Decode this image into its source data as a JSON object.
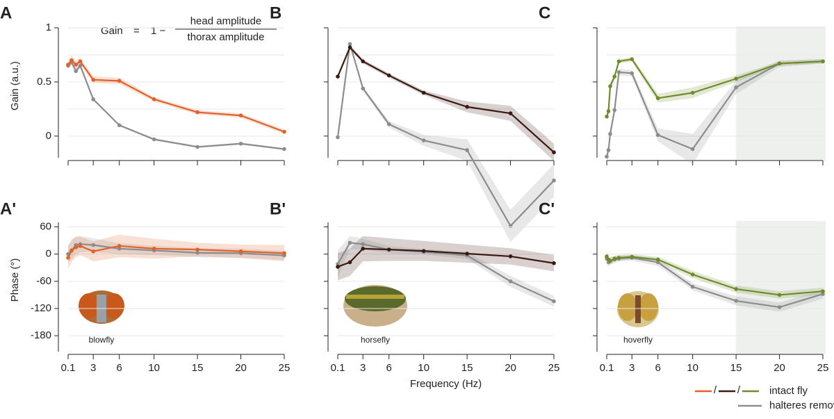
{
  "chart_data": [
    {
      "type": "line",
      "panel": "A",
      "row": 0,
      "col": 0,
      "ylabel": "Gain (a.u.)",
      "xlim": [
        0.1,
        25
      ],
      "xticks": [
        0.1,
        3,
        6,
        10,
        15,
        20,
        25
      ],
      "show_xtick_labels": false,
      "ylim": [
        -0.2,
        1
      ],
      "yticks": [
        0,
        0.5,
        1
      ],
      "show_ytick_labels": true,
      "ygrid": [
        0,
        0.25,
        0.5,
        0.75,
        1
      ],
      "series": [
        {
          "name": "intact fly",
          "color": "#e0622a",
          "x": [
            0.1,
            0.5,
            1,
            1.5,
            3,
            6,
            10,
            15,
            20,
            25
          ],
          "values": [
            0.66,
            0.7,
            0.66,
            0.69,
            0.52,
            0.51,
            0.34,
            0.22,
            0.19,
            0.04
          ],
          "errors": [
            0.04,
            0.04,
            0.04,
            0.03,
            0.03,
            0.03,
            0.02,
            0.02,
            0.02,
            0.02
          ]
        },
        {
          "name": "halteres removed",
          "color": "#8c8c8c",
          "x": [
            0.1,
            0.5,
            1,
            1.5,
            3,
            6,
            10,
            15,
            20,
            25
          ],
          "values": [
            0.65,
            0.68,
            0.6,
            0.65,
            0.34,
            0.1,
            -0.03,
            -0.1,
            -0.07,
            -0.12
          ],
          "errors": [
            0.02,
            0.02,
            0.02,
            0.02,
            0.01,
            0.01,
            0.01,
            0.01,
            0.01,
            0.01
          ]
        }
      ]
    },
    {
      "type": "line",
      "panel": "B",
      "row": 0,
      "col": 1,
      "xlim": [
        0.1,
        25
      ],
      "xticks": [
        0.1,
        3,
        6,
        10,
        15,
        20,
        25
      ],
      "show_xtick_labels": false,
      "ylim": [
        -0.2,
        1
      ],
      "yticks": [
        0,
        0.5,
        1
      ],
      "show_ytick_labels": false,
      "ygrid": [
        0,
        0.25,
        0.5,
        0.75,
        1
      ],
      "series": [
        {
          "name": "intact fly",
          "color": "#3b1a12",
          "x": [
            0.1,
            1.5,
            3,
            6,
            10,
            15,
            20,
            25
          ],
          "values": [
            0.55,
            0.82,
            0.69,
            0.56,
            0.4,
            0.27,
            0.21,
            -0.15
          ],
          "errors": [
            0.02,
            0.02,
            0.02,
            0.02,
            0.02,
            0.05,
            0.07,
            0.08
          ]
        },
        {
          "name": "halteres removed",
          "color": "#8c8c8c",
          "x": [
            0.1,
            1.5,
            3,
            6,
            10,
            15,
            20,
            25
          ],
          "values": [
            -0.01,
            0.85,
            0.44,
            0.11,
            -0.04,
            -0.13,
            -0.83,
            -0.41
          ],
          "errors": [
            0.01,
            0.01,
            0.02,
            0.03,
            0.05,
            0.1,
            0.15,
            0.15
          ]
        }
      ]
    },
    {
      "type": "line",
      "panel": "C",
      "row": 0,
      "col": 2,
      "xlim": [
        0.1,
        25
      ],
      "xticks": [
        0.1,
        3,
        6,
        10,
        15,
        20,
        25
      ],
      "show_xtick_labels": false,
      "ylim": [
        -0.2,
        1
      ],
      "yticks": [
        0,
        0.5,
        1
      ],
      "show_ytick_labels": false,
      "ygrid": [
        0,
        0.25,
        0.5,
        0.75,
        1
      ],
      "shade": [
        15,
        25
      ],
      "series": [
        {
          "name": "intact fly",
          "color": "#6e8c2a",
          "x": [
            0.1,
            0.3,
            0.5,
            1,
            1.5,
            3,
            6,
            10,
            15,
            20,
            25
          ],
          "values": [
            0.18,
            0.23,
            0.46,
            0.55,
            0.69,
            0.71,
            0.35,
            0.4,
            0.53,
            0.67,
            0.69
          ],
          "errors": [
            0.03,
            0.03,
            0.03,
            0.03,
            0.02,
            0.02,
            0.04,
            0.05,
            0.03,
            0.02,
            0.02
          ]
        },
        {
          "name": "halteres removed",
          "color": "#8c8c8c",
          "x": [
            0.1,
            0.3,
            0.5,
            1,
            1.5,
            3,
            6,
            10,
            15,
            20,
            25
          ],
          "values": [
            -0.19,
            -0.13,
            0.02,
            0.24,
            0.59,
            0.58,
            0.01,
            -0.12,
            0.45,
            0.67,
            0.69
          ],
          "errors": [
            0.05,
            0.05,
            0.04,
            0.04,
            0.03,
            0.03,
            0.06,
            0.14,
            0.06,
            0.03,
            0.02
          ]
        }
      ]
    },
    {
      "type": "line",
      "panel": "A'",
      "row": 1,
      "col": 0,
      "ylabel": "Phase (°)",
      "animal": "blowfly",
      "xlim": [
        0.1,
        25
      ],
      "xticks": [
        0.1,
        3,
        6,
        10,
        15,
        20,
        25
      ],
      "show_xtick_labels": true,
      "ylim": [
        -215,
        70
      ],
      "yticks": [
        60,
        0,
        -60,
        -120,
        -180
      ],
      "show_ytick_labels": true,
      "ygrid": [
        60,
        0,
        -60,
        -120,
        -180
      ],
      "series": [
        {
          "name": "intact fly",
          "color": "#e0622a",
          "x": [
            0.1,
            0.5,
            1,
            1.5,
            3,
            6,
            10,
            15,
            20,
            25
          ],
          "values": [
            -8,
            8,
            15,
            18,
            6,
            18,
            12,
            10,
            6,
            2
          ],
          "errors": [
            25,
            25,
            22,
            20,
            22,
            25,
            22,
            15,
            15,
            18
          ]
        },
        {
          "name": "halteres removed",
          "color": "#8c8c8c",
          "x": [
            0.1,
            0.5,
            1,
            1.5,
            3,
            6,
            10,
            15,
            20,
            25
          ],
          "values": [
            0,
            8,
            20,
            22,
            20,
            12,
            8,
            3,
            2,
            -3
          ],
          "errors": [
            20,
            20,
            20,
            18,
            15,
            12,
            10,
            10,
            10,
            10
          ]
        }
      ]
    },
    {
      "type": "line",
      "panel": "B'",
      "row": 1,
      "col": 1,
      "animal": "horsefly",
      "xlabel": "Frequency (Hz)",
      "xlim": [
        0.1,
        25
      ],
      "xticks": [
        0.1,
        3,
        6,
        10,
        15,
        20,
        25
      ],
      "show_xtick_labels": true,
      "ylim": [
        -215,
        70
      ],
      "yticks": [
        60,
        0,
        -60,
        -120,
        -180
      ],
      "show_ytick_labels": false,
      "ygrid": [
        60,
        0,
        -60,
        -120,
        -180
      ],
      "series": [
        {
          "name": "intact fly",
          "color": "#3b1a12",
          "x": [
            0.1,
            1.5,
            3,
            6,
            10,
            15,
            20,
            25
          ],
          "values": [
            -28,
            -18,
            12,
            10,
            7,
            1,
            -5,
            -20
          ],
          "errors": [
            30,
            30,
            28,
            25,
            22,
            20,
            18,
            18
          ]
        },
        {
          "name": "halteres removed",
          "color": "#8c8c8c",
          "x": [
            0.1,
            1.5,
            3,
            6,
            10,
            15,
            20,
            25
          ],
          "values": [
            -22,
            25,
            22,
            10,
            5,
            -3,
            -60,
            -104
          ],
          "errors": [
            30,
            15,
            12,
            8,
            6,
            8,
            12,
            12
          ]
        }
      ]
    },
    {
      "type": "line",
      "panel": "C'",
      "row": 1,
      "col": 2,
      "animal": "hoverfly",
      "xlim": [
        0.1,
        25
      ],
      "xticks": [
        0.1,
        3,
        6,
        10,
        15,
        20,
        25
      ],
      "show_xtick_labels": true,
      "ylim": [
        -215,
        70
      ],
      "yticks": [
        60,
        0,
        -60,
        -120,
        -180
      ],
      "show_ytick_labels": false,
      "ygrid": [
        60,
        0,
        -60,
        -120,
        -180
      ],
      "shade": [
        15,
        25
      ],
      "series": [
        {
          "name": "intact fly",
          "color": "#6e8c2a",
          "x": [
            0.1,
            0.3,
            0.5,
            1,
            1.5,
            3,
            6,
            10,
            15,
            20,
            25
          ],
          "values": [
            -5,
            -12,
            -15,
            -10,
            -8,
            -6,
            -12,
            -45,
            -77,
            -90,
            -82
          ],
          "errors": [
            8,
            8,
            8,
            6,
            6,
            6,
            6,
            8,
            8,
            8,
            8
          ]
        },
        {
          "name": "halteres removed",
          "color": "#8c8c8c",
          "x": [
            0.1,
            0.3,
            0.5,
            1,
            1.5,
            3,
            6,
            10,
            15,
            20,
            25
          ],
          "values": [
            -10,
            -18,
            -15,
            -12,
            -10,
            -8,
            -18,
            -72,
            -103,
            -117,
            -88
          ],
          "errors": [
            10,
            10,
            8,
            8,
            6,
            6,
            8,
            8,
            10,
            10,
            10
          ]
        }
      ]
    }
  ],
  "formula": {
    "lhs": "Gain",
    "eq": "=",
    "one": "1 −",
    "numerator": "head amplitude",
    "denominator": "thorax amplitude"
  },
  "legend": {
    "separator": "/",
    "intact": "intact fly",
    "removed": "halteres removed",
    "intact_colors": [
      "#e0622a",
      "#3b1a12",
      "#6e8c2a"
    ],
    "removed_color": "#8c8c8c"
  }
}
